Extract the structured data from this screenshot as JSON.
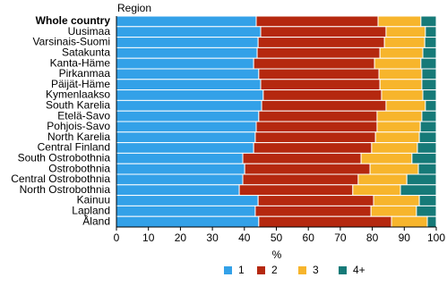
{
  "chart_data": {
    "type": "stacked_barh",
    "y_axis_label": "Region",
    "x_axis_label": "%",
    "categories": [
      "Whole country",
      "Uusimaa",
      "Varsinais-Suomi",
      "Satakunta",
      "Kanta-Häme",
      "Pirkanmaa",
      "Päijät-Häme",
      "Kymenlaakso",
      "South Karelia",
      "Etelä-Savo",
      "Pohjois-Savo",
      "North Karelia",
      "Central Finland",
      "South Ostrobothnia",
      "Ostrobothnia",
      "Central Ostrobothnia",
      "North Ostrobothnia",
      "Kainuu",
      "Lapland",
      "Åland"
    ],
    "series": [
      {
        "name": "1",
        "color": "#33a1e8",
        "values": [
          43.7,
          45.1,
          44.3,
          44.0,
          42.9,
          44.5,
          45.1,
          45.9,
          45.4,
          44.5,
          43.7,
          43.4,
          42.9,
          39.5,
          40.1,
          39.5,
          38.4,
          44.3,
          43.4,
          44.5
        ]
      },
      {
        "name": "2",
        "color": "#b5280f",
        "values": [
          38.1,
          39.2,
          39.5,
          38.4,
          37.8,
          37.6,
          37.3,
          37.0,
          38.9,
          37.0,
          37.8,
          37.6,
          36.9,
          37.0,
          39.2,
          36.1,
          35.5,
          36.1,
          36.2,
          41.5
        ]
      },
      {
        "name": "3",
        "color": "#f7b52c",
        "values": [
          13.4,
          12.3,
          12.6,
          13.4,
          14.5,
          13.4,
          13.1,
          12.9,
          12.3,
          14.0,
          13.5,
          13.7,
          14.3,
          15.9,
          15.1,
          15.2,
          14.9,
          14.3,
          14.2,
          11.2
        ]
      },
      {
        "name": "4+",
        "color": "#167a78",
        "values": [
          4.8,
          3.4,
          3.6,
          4.2,
          4.8,
          4.5,
          4.5,
          4.2,
          3.4,
          4.5,
          5.0,
          5.3,
          5.9,
          7.6,
          5.6,
          9.2,
          11.2,
          5.3,
          6.2,
          2.8
        ]
      }
    ],
    "xlim": [
      0,
      100
    ],
    "xticks": [
      0,
      10,
      20,
      30,
      40,
      50,
      60,
      70,
      80,
      90,
      100
    ]
  }
}
